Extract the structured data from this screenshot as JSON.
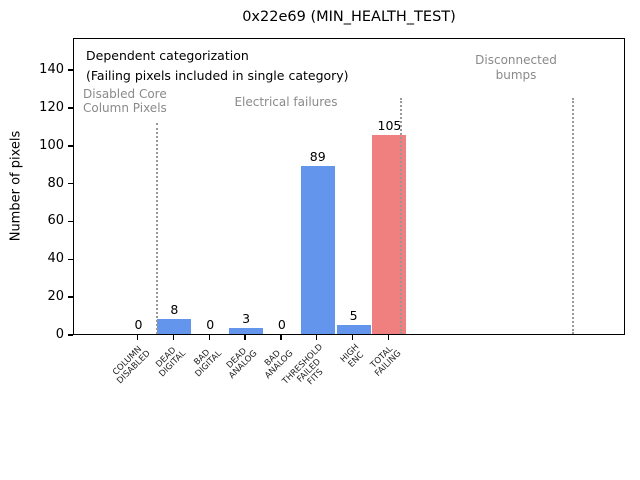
{
  "title": "0x22e69 (MIN_HEALTH_TEST)",
  "colors": {
    "bar_blue": "#6495ed",
    "bar_red": "#f08080",
    "annotation_gray": "#8a8a8a",
    "separator_gray": "#999999",
    "axis_black": "#000000"
  },
  "chart_data": {
    "type": "bar",
    "title": "0x22e69 (MIN_HEALTH_TEST)",
    "xlabel": "",
    "ylabel": "Number of pixels",
    "categories": [
      "COLUMN\nDISABLED",
      "DEAD\nDIGITAL",
      "BAD\nDIGITAL",
      "DEAD\nANALOG",
      "BAD\nANALOG",
      "THRESHOLD\nFAILED\nFITS",
      "HIGH\nENC",
      "TOTAL\nFAILING"
    ],
    "values": [
      0,
      8,
      0,
      3,
      0,
      89,
      5,
      105
    ],
    "bar_colors": [
      "#6495ed",
      "#6495ed",
      "#6495ed",
      "#6495ed",
      "#6495ed",
      "#6495ed",
      "#6495ed",
      "#f08080"
    ],
    "value_labels": [
      "0",
      "8",
      "0",
      "3",
      "0",
      "89",
      "5",
      "105"
    ],
    "yticks": [
      0,
      20,
      40,
      60,
      80,
      100,
      120,
      140
    ],
    "ylim": [
      0,
      157
    ],
    "xlim": [
      -1.8,
      13.6
    ],
    "grid": false,
    "legend": null,
    "annotations": [
      {
        "id": "dependent-categorization",
        "text": "Dependent categorization\n(Failing pixels included in single category)",
        "color": "black"
      },
      {
        "id": "disabled-core-column-pixels",
        "text": "Disabled Core\nColumn Pixels",
        "color": "gray"
      },
      {
        "id": "electrical-failures",
        "text": "Electrical failures",
        "color": "gray"
      },
      {
        "id": "disconnected-bumps",
        "text": "Disconnected\nbumps",
        "color": "gray"
      }
    ],
    "separators": [
      {
        "x_slot": 0.5
      },
      {
        "x_slot": 7.3
      },
      {
        "x_slot": 12.1
      }
    ]
  }
}
